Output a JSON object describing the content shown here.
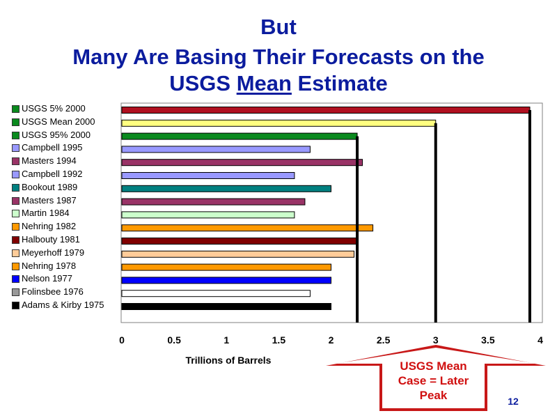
{
  "slide": {
    "title_line1": "But",
    "title_line2": "Many Are Basing Their Forecasts on the",
    "title_line3_pre": "USGS ",
    "title_line3_ul": "Mean",
    "title_line3_post": " Estimate",
    "page_number": "12"
  },
  "callout": {
    "lines": [
      "USGS Mean",
      "Case = Later",
      "Peak"
    ],
    "color": "#d01010"
  },
  "chart_data": {
    "type": "bar",
    "orientation": "horizontal",
    "xlabel": "Trillions of Barrels",
    "xlim": [
      0,
      4
    ],
    "xticks": [
      "0",
      "0.5",
      "1",
      "1.5",
      "2",
      "2.5",
      "3",
      "3.5",
      "4"
    ],
    "grid": false,
    "legend_position": "left",
    "categories": [
      "USGS 5% 2000",
      "USGS Mean 2000",
      "USGS 95% 2000",
      "Campbell 1995",
      "Masters 1994",
      "Campbell 1992",
      "Bookout 1989",
      "Masters 1987",
      "Martin 1984",
      "Nehring 1982",
      "Halbouty 1981",
      "Meyerhoff 1979",
      "Nehring 1978",
      "Nelson 1977",
      "Folinsbee 1976",
      "Adams & Kirby 1975"
    ],
    "values": [
      3.9,
      3.0,
      2.25,
      1.8,
      2.3,
      1.65,
      2.0,
      1.75,
      1.65,
      2.4,
      2.25,
      2.22,
      2.0,
      2.0,
      1.8,
      2.0
    ],
    "bar_colors": [
      "#b01020",
      "#ffff80",
      "#0a8a1e",
      "#9999ff",
      "#993366",
      "#9999ff",
      "#008080",
      "#993366",
      "#ccffcc",
      "#ff9900",
      "#800000",
      "#ffcc99",
      "#ff9900",
      "#0000ff",
      "#ffffff",
      "#000000"
    ],
    "legend_swatch_colors": [
      "#0a8a1e",
      "#0a8a1e",
      "#0a8a1e",
      "#9999ff",
      "#993366",
      "#9999ff",
      "#008080",
      "#993366",
      "#ccffcc",
      "#ff9900",
      "#800000",
      "#ffcc99",
      "#ff9900",
      "#0000ff",
      "#999999",
      "#000000"
    ],
    "reference_lines": [
      {
        "category": "USGS 5% 2000",
        "value": 3.9
      },
      {
        "category": "USGS Mean 2000",
        "value": 3.0
      },
      {
        "category": "USGS 95% 2000",
        "value": 2.25
      }
    ]
  }
}
